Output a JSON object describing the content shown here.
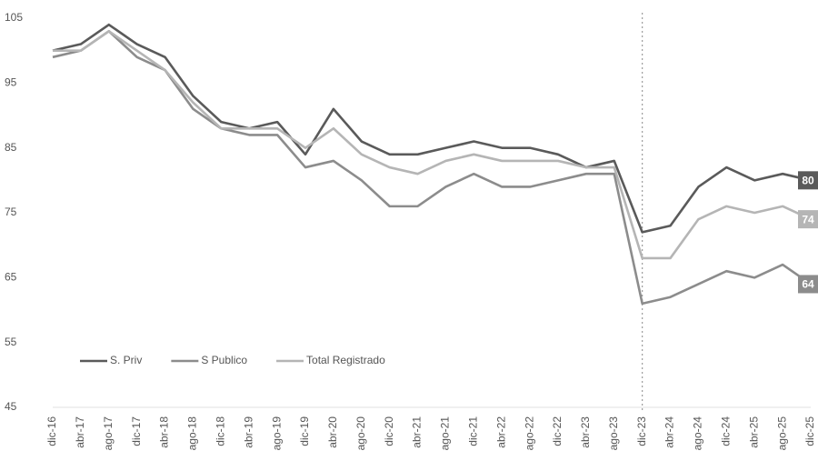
{
  "chart_data": {
    "type": "line",
    "categories": [
      "dic-16",
      "abr-17",
      "ago-17",
      "dic-17",
      "abr-18",
      "ago-18",
      "dic-18",
      "abr-19",
      "ago-19",
      "dic-19",
      "abr-20",
      "ago-20",
      "dic-20",
      "abr-21",
      "ago-21",
      "dic-21",
      "abr-22",
      "ago-22",
      "dic-22",
      "abr-23",
      "ago-23",
      "dic-23",
      "abr-24",
      "ago-24",
      "dic-24",
      "abr-25",
      "ago-25",
      "dic-25"
    ],
    "series": [
      {
        "name": "S. Priv",
        "color": "#5a5a5a",
        "values": [
          100,
          101,
          104,
          101,
          99,
          93,
          89,
          88,
          89,
          84,
          91,
          86,
          84,
          84,
          85,
          86,
          85,
          85,
          84,
          82,
          83,
          72,
          73,
          79,
          82,
          80,
          81,
          80
        ]
      },
      {
        "name": "S Publico",
        "color": "#8c8c8c",
        "values": [
          99,
          100,
          103,
          99,
          97,
          91,
          88,
          87,
          87,
          82,
          83,
          80,
          76,
          76,
          79,
          81,
          79,
          79,
          80,
          81,
          81,
          61,
          62,
          64,
          66,
          65,
          67,
          64
        ]
      },
      {
        "name": "Total Registrado",
        "color": "#b5b5b5",
        "values": [
          100,
          100,
          103,
          100,
          97,
          92,
          88,
          88,
          88,
          85,
          88,
          84,
          82,
          81,
          83,
          84,
          83,
          83,
          83,
          82,
          82,
          68,
          68,
          74,
          76,
          75,
          76,
          74
        ]
      }
    ],
    "ylim": [
      45,
      105
    ],
    "yticks": [
      45,
      55,
      65,
      75,
      85,
      95,
      105
    ],
    "grid": false
  }
}
